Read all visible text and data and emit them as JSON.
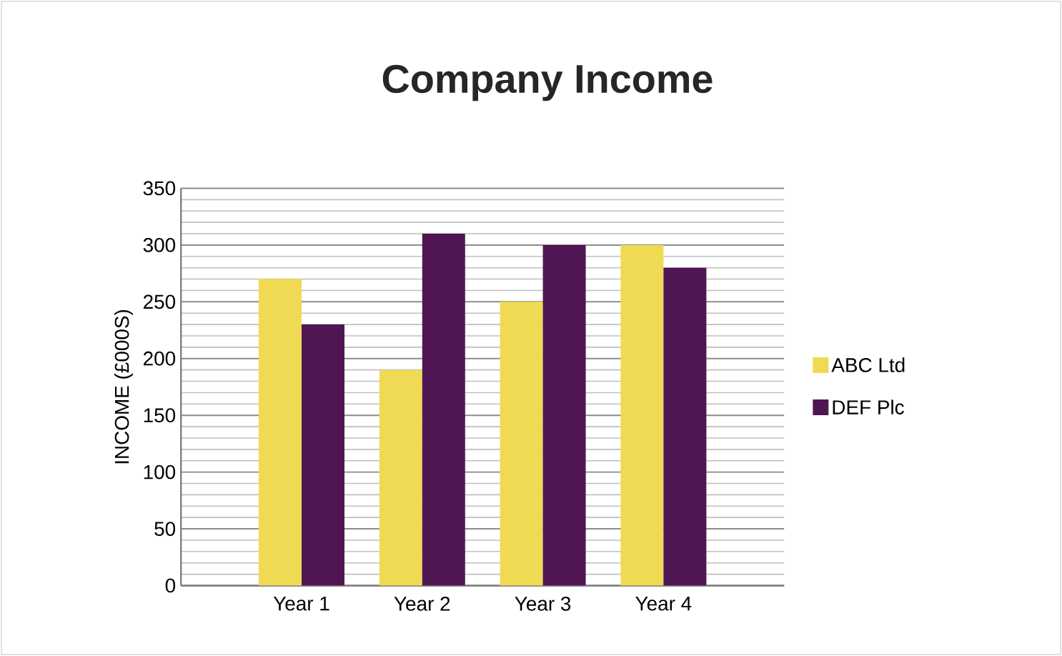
{
  "chart_data": {
    "type": "bar",
    "title": "Company Income",
    "ylabel": "INCOME (£000S)",
    "categories": [
      "Year 1",
      "Year 2",
      "Year 3",
      "Year 4"
    ],
    "series": [
      {
        "name": "ABC Ltd",
        "color": "#f0da54",
        "values": [
          270,
          190,
          250,
          300
        ]
      },
      {
        "name": "DEF Plc",
        "color": "#501653",
        "values": [
          230,
          310,
          300,
          280
        ]
      }
    ],
    "ylim": [
      0,
      350
    ],
    "yticks": [
      0,
      50,
      100,
      150,
      200,
      250,
      300,
      350
    ],
    "grid": "y",
    "legend": "right"
  }
}
